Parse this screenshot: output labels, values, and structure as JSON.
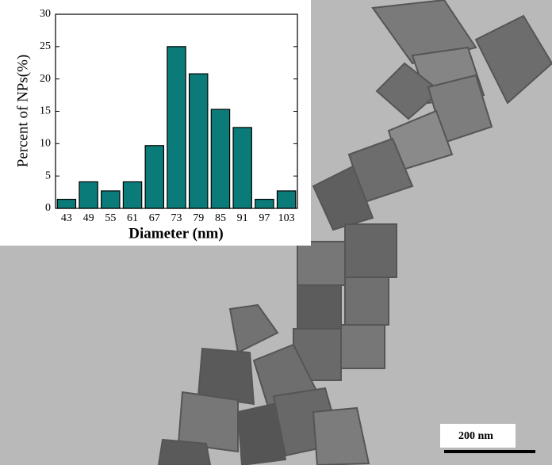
{
  "chart_data": {
    "type": "bar",
    "ylabel": "Percent of NPs(%)",
    "xlabel": "Diameter (nm)",
    "categories": [
      "43",
      "49",
      "55",
      "61",
      "67",
      "73",
      "79",
      "85",
      "91",
      "97",
      "103"
    ],
    "values": [
      1.4,
      4.1,
      2.7,
      4.1,
      9.7,
      25,
      20.8,
      15.3,
      12.5,
      1.4,
      2.7
    ],
    "color": "#0b7b79",
    "ylim": [
      0,
      30
    ],
    "yticks": [
      0,
      5,
      10,
      15,
      20,
      25,
      30
    ]
  },
  "scale_bar": {
    "label": "200 nm"
  }
}
